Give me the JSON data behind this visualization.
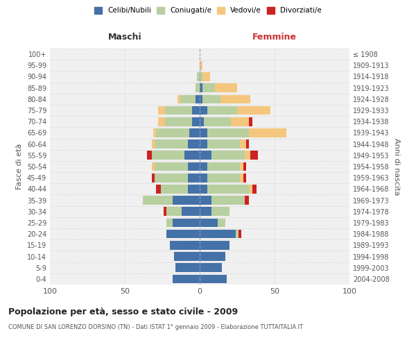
{
  "age_groups": [
    "0-4",
    "5-9",
    "10-14",
    "15-19",
    "20-24",
    "25-29",
    "30-34",
    "35-39",
    "40-44",
    "45-49",
    "50-54",
    "55-59",
    "60-64",
    "65-69",
    "70-74",
    "75-79",
    "80-84",
    "85-89",
    "90-94",
    "95-99",
    "100+"
  ],
  "birth_years": [
    "2004-2008",
    "1999-2003",
    "1994-1998",
    "1989-1993",
    "1984-1988",
    "1979-1983",
    "1974-1978",
    "1969-1973",
    "1964-1968",
    "1959-1963",
    "1954-1958",
    "1949-1953",
    "1944-1948",
    "1939-1943",
    "1934-1938",
    "1929-1933",
    "1924-1928",
    "1919-1923",
    "1914-1918",
    "1909-1913",
    "≤ 1908"
  ],
  "males": {
    "celibi": [
      18,
      16,
      17,
      20,
      22,
      18,
      12,
      18,
      8,
      8,
      8,
      10,
      8,
      7,
      5,
      5,
      3,
      0,
      0,
      0,
      0
    ],
    "coniugati": [
      0,
      0,
      0,
      0,
      0,
      4,
      10,
      20,
      18,
      22,
      22,
      22,
      22,
      22,
      18,
      18,
      10,
      3,
      2,
      0,
      0
    ],
    "vedovi": [
      0,
      0,
      0,
      0,
      0,
      0,
      0,
      0,
      0,
      0,
      2,
      0,
      2,
      2,
      5,
      5,
      2,
      0,
      0,
      0,
      0
    ],
    "divorziati": [
      0,
      0,
      0,
      0,
      0,
      0,
      2,
      0,
      3,
      2,
      0,
      3,
      0,
      0,
      0,
      0,
      0,
      0,
      0,
      0,
      0
    ]
  },
  "females": {
    "nubili": [
      18,
      15,
      17,
      20,
      24,
      12,
      8,
      8,
      5,
      5,
      5,
      8,
      5,
      5,
      3,
      5,
      2,
      2,
      0,
      0,
      0
    ],
    "coniugate": [
      0,
      0,
      0,
      0,
      2,
      5,
      12,
      22,
      28,
      22,
      22,
      22,
      22,
      28,
      18,
      20,
      12,
      8,
      2,
      0,
      0
    ],
    "vedove": [
      0,
      0,
      0,
      0,
      0,
      0,
      0,
      0,
      2,
      2,
      2,
      4,
      4,
      25,
      12,
      22,
      20,
      15,
      5,
      2,
      0
    ],
    "divorziate": [
      0,
      0,
      0,
      0,
      2,
      0,
      0,
      3,
      3,
      2,
      2,
      5,
      2,
      0,
      2,
      0,
      0,
      0,
      0,
      0,
      0
    ]
  },
  "colors": {
    "celibi": "#4472a8",
    "coniugati": "#b8cfa0",
    "vedovi": "#f5c77e",
    "divorziati": "#cc2222"
  },
  "title": "Popolazione per età, sesso e stato civile - 2009",
  "subtitle": "COMUNE DI SAN LORENZO DORSINO (TN) - Dati ISTAT 1° gennaio 2009 - Elaborazione TUTTAITALIA.IT",
  "xlabel_left": "Maschi",
  "xlabel_right": "Femmine",
  "ylabel_left": "Fasce di età",
  "ylabel_right": "Anni di nascita",
  "xlim": 100,
  "legend_labels": [
    "Celibi/Nubili",
    "Coniugati/e",
    "Vedovi/e",
    "Divorziati/e"
  ],
  "bg_color": "#f0f0f0"
}
